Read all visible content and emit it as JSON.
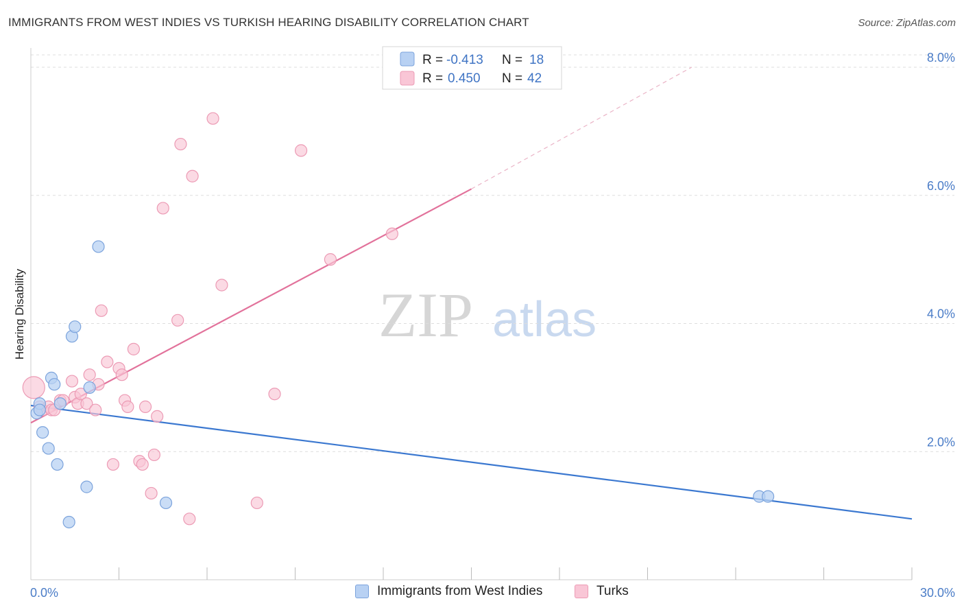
{
  "header": {
    "title": "IMMIGRANTS FROM WEST INDIES VS TURKISH HEARING DISABILITY CORRELATION CHART",
    "source": "Source: ZipAtlas.com"
  },
  "watermark": {
    "zip": "ZIP",
    "atlas": "atlas"
  },
  "legend": {
    "rows": [
      {
        "r_label": "R =",
        "r_value": "-0.413",
        "n_label": "N =",
        "n_value": "18"
      },
      {
        "r_label": "R =",
        "r_value": "0.450",
        "n_label": "N =",
        "n_value": "42"
      }
    ]
  },
  "colors": {
    "blue_fill": "#b8d1f3",
    "blue_stroke": "#7ba3dc",
    "blue_line": "#3b78d0",
    "pink_fill": "#f9c6d6",
    "pink_stroke": "#ec9ab4",
    "pink_line": "#e2729b",
    "tick_text": "#4a7cc7",
    "grid": "#dddddd"
  },
  "chart_data": {
    "type": "scatter",
    "title": "IMMIGRANTS FROM WEST INDIES VS TURKISH HEARING DISABILITY CORRELATION CHART",
    "xlabel": "",
    "ylabel": "Hearing Disability",
    "xlim": [
      0,
      30
    ],
    "ylim": [
      0,
      8.3
    ],
    "x_tick_labels": [
      "0.0%",
      "30.0%"
    ],
    "y_ticks": [
      2,
      4,
      6,
      8
    ],
    "y_tick_labels": [
      "2.0%",
      "4.0%",
      "6.0%",
      "8.0%"
    ],
    "grid": true,
    "series": [
      {
        "name": "Immigrants from West Indies",
        "color": "#b8d1f3",
        "points": [
          [
            0.2,
            2.6
          ],
          [
            0.3,
            2.75
          ],
          [
            0.3,
            2.65
          ],
          [
            0.4,
            2.3
          ],
          [
            0.6,
            2.05
          ],
          [
            0.7,
            3.15
          ],
          [
            0.8,
            3.05
          ],
          [
            0.9,
            1.8
          ],
          [
            1.0,
            2.75
          ],
          [
            1.3,
            0.9
          ],
          [
            1.4,
            3.8
          ],
          [
            1.5,
            3.95
          ],
          [
            1.9,
            1.45
          ],
          [
            2.0,
            3.0
          ],
          [
            2.3,
            5.2
          ],
          [
            4.6,
            1.2
          ],
          [
            24.8,
            1.3
          ],
          [
            25.1,
            1.3
          ]
        ],
        "trend": {
          "x": [
            0,
            30
          ],
          "y": [
            2.72,
            0.95
          ],
          "dashed_extension": false
        }
      },
      {
        "name": "Turks",
        "color": "#f9c6d6",
        "points": [
          [
            0.1,
            3.0
          ],
          [
            0.3,
            2.7
          ],
          [
            0.4,
            2.65
          ],
          [
            0.6,
            2.7
          ],
          [
            0.7,
            2.65
          ],
          [
            0.8,
            2.65
          ],
          [
            1.0,
            2.8
          ],
          [
            1.1,
            2.8
          ],
          [
            1.4,
            3.1
          ],
          [
            1.5,
            2.85
          ],
          [
            1.6,
            2.75
          ],
          [
            1.7,
            2.9
          ],
          [
            1.9,
            2.75
          ],
          [
            2.0,
            3.2
          ],
          [
            2.2,
            2.65
          ],
          [
            2.3,
            3.05
          ],
          [
            2.4,
            4.2
          ],
          [
            2.6,
            3.4
          ],
          [
            2.8,
            1.8
          ],
          [
            3.0,
            3.3
          ],
          [
            3.1,
            3.2
          ],
          [
            3.2,
            2.8
          ],
          [
            3.3,
            2.7
          ],
          [
            3.5,
            3.6
          ],
          [
            3.7,
            1.85
          ],
          [
            3.8,
            1.8
          ],
          [
            3.9,
            2.7
          ],
          [
            4.1,
            1.35
          ],
          [
            4.2,
            1.95
          ],
          [
            4.3,
            2.55
          ],
          [
            4.5,
            5.8
          ],
          [
            5.0,
            4.05
          ],
          [
            5.1,
            6.8
          ],
          [
            5.4,
            0.95
          ],
          [
            5.5,
            6.3
          ],
          [
            6.2,
            7.2
          ],
          [
            6.5,
            4.6
          ],
          [
            7.7,
            1.2
          ],
          [
            8.3,
            2.9
          ],
          [
            9.2,
            6.7
          ],
          [
            10.2,
            5.0
          ],
          [
            12.3,
            5.4
          ]
        ],
        "trend": {
          "x": [
            0,
            15
          ],
          "y": [
            2.45,
            6.1
          ],
          "dashed_extension": {
            "x": [
              15,
              22.5
            ],
            "y": [
              6.1,
              8.0
            ]
          }
        }
      }
    ]
  },
  "bottom_legend": {
    "items": [
      {
        "label": "Immigrants from West Indies"
      },
      {
        "label": "Turks"
      }
    ]
  }
}
